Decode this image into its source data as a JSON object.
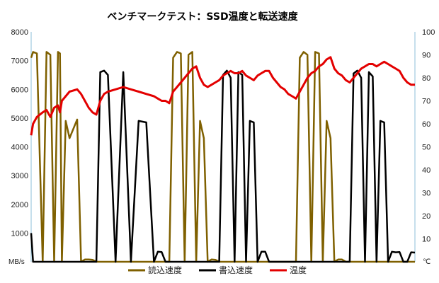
{
  "chart_data": {
    "type": "line",
    "title": "ベンチマークテスト：SSD温度と転送速度",
    "left_unit": "MB/s",
    "right_unit": "℃",
    "left_axis": {
      "ylim": [
        0,
        8000
      ],
      "ticks": [
        "0",
        "1000",
        "2000",
        "3000",
        "4000",
        "5000",
        "6000",
        "7000",
        "8000"
      ]
    },
    "right_axis": {
      "ylim": [
        0,
        100
      ],
      "ticks": [
        "0",
        "10",
        "20",
        "30",
        "40",
        "50",
        "60",
        "70",
        "80",
        "90",
        "100"
      ]
    },
    "x": [
      0,
      0.5,
      1.5,
      3,
      4,
      5,
      6,
      7,
      7.5,
      8,
      9,
      10,
      12,
      13,
      14,
      15,
      16,
      17,
      18,
      19,
      20,
      22,
      24,
      26,
      28,
      30,
      32,
      33,
      34,
      35,
      36,
      37,
      38,
      39,
      40,
      41,
      42,
      43,
      44,
      45,
      46,
      47,
      48,
      49,
      50,
      51,
      52,
      53,
      54,
      55,
      56,
      57,
      58,
      59,
      60,
      61,
      62,
      63,
      64,
      65,
      66,
      67,
      68,
      69,
      70,
      71,
      72,
      73,
      74,
      75,
      76,
      77,
      78,
      79,
      80,
      81,
      82,
      83,
      84,
      85,
      86,
      87,
      88,
      89,
      90,
      91,
      92,
      93,
      94,
      95,
      96,
      97,
      98,
      99,
      100
    ],
    "series": [
      {
        "name": "読込速度",
        "axis": "left",
        "color": "#7f6000",
        "values": [
          7100,
          7300,
          7250,
          0,
          7300,
          7200,
          0,
          7300,
          7250,
          0,
          4900,
          4300,
          4950,
          0,
          80,
          80,
          70,
          0,
          0,
          0,
          0,
          0,
          0,
          0,
          0,
          0,
          0,
          0,
          0,
          0,
          0,
          7100,
          7300,
          7250,
          0,
          7200,
          7300,
          0,
          4900,
          4300,
          0,
          80,
          70,
          0,
          0,
          0,
          0,
          0,
          0,
          0,
          0,
          0,
          0,
          0,
          0,
          0,
          0,
          0,
          0,
          0,
          0,
          0,
          0,
          0,
          7100,
          7300,
          7200,
          0,
          7300,
          7250,
          0,
          4900,
          4300,
          0,
          80,
          80,
          0,
          0,
          0,
          0,
          0,
          0,
          0,
          0,
          0,
          0,
          0,
          0,
          0,
          0,
          0,
          0,
          0,
          0,
          0
        ]
      },
      {
        "name": "書込速度",
        "axis": "left",
        "color": "#000000",
        "values": [
          1000,
          0,
          0,
          0,
          0,
          0,
          0,
          0,
          0,
          0,
          0,
          0,
          0,
          0,
          0,
          0,
          0,
          0,
          6600,
          6650,
          6500,
          0,
          6600,
          0,
          4900,
          4850,
          0,
          350,
          340,
          0,
          0,
          0,
          0,
          0,
          0,
          0,
          0,
          0,
          0,
          0,
          0,
          0,
          0,
          0,
          6500,
          6650,
          6400,
          0,
          6600,
          6500,
          0,
          4900,
          4850,
          0,
          350,
          350,
          0,
          0,
          0,
          0,
          0,
          0,
          0,
          0,
          0,
          0,
          0,
          0,
          0,
          0,
          0,
          0,
          0,
          0,
          0,
          0,
          0,
          0,
          6550,
          6650,
          6400,
          0,
          6600,
          6450,
          0,
          4900,
          4850,
          0,
          350,
          330,
          340,
          0,
          0,
          330,
          320
        ]
      },
      {
        "name": "温度",
        "axis": "right",
        "color": "#e30000",
        "values": [
          55,
          60,
          63,
          65,
          66,
          63,
          67,
          68,
          65,
          70,
          72,
          74,
          75,
          73,
          70,
          67,
          65,
          64,
          70,
          73,
          74,
          75,
          76,
          75,
          74,
          73,
          72,
          71,
          70,
          70,
          69,
          74,
          76,
          78,
          80,
          82,
          84,
          85,
          80,
          77,
          76,
          77,
          78,
          79,
          81,
          82,
          83,
          82,
          82,
          83,
          81,
          80,
          79,
          81,
          82,
          83,
          83,
          80,
          78,
          76,
          75,
          73,
          72,
          71,
          74,
          77,
          80,
          82,
          83,
          85,
          86,
          88,
          89,
          84,
          82,
          81,
          79,
          78,
          80,
          82,
          84,
          85,
          86,
          86,
          85,
          86,
          87,
          86,
          85,
          84,
          83,
          80,
          78,
          77,
          77
        ]
      }
    ]
  }
}
